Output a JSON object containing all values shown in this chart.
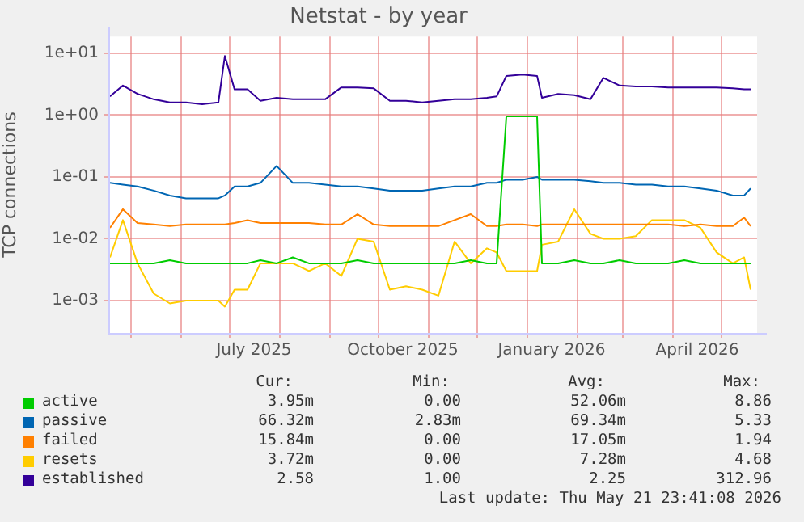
{
  "chart_data": {
    "type": "line",
    "title": "Netstat - by year",
    "ylabel": "TCP connections",
    "x": [
      "2025-04-18",
      "2025-04-26",
      "2025-05-05",
      "2025-05-15",
      "2025-05-25",
      "2025-06-04",
      "2025-06-14",
      "2025-06-24",
      "2025-06-28",
      "2025-07-04",
      "2025-07-12",
      "2025-07-20",
      "2025-07-30",
      "2025-08-09",
      "2025-08-19",
      "2025-08-29",
      "2025-09-08",
      "2025-09-18",
      "2025-09-28",
      "2025-10-08",
      "2025-10-18",
      "2025-10-28",
      "2025-11-07",
      "2025-11-17",
      "2025-11-27",
      "2025-12-07",
      "2025-12-13",
      "2025-12-19",
      "2025-12-29",
      "2026-01-07",
      "2026-01-10",
      "2026-01-20",
      "2026-01-30",
      "2026-02-09",
      "2026-02-17",
      "2026-02-27",
      "2026-03-09",
      "2026-03-19",
      "2026-03-29",
      "2026-04-08",
      "2026-04-18",
      "2026-04-28",
      "2026-05-08",
      "2026-05-15",
      "2026-05-19"
    ],
    "series": [
      {
        "name": "active",
        "color": "#00cc00",
        "values": [
          0.004,
          0.004,
          0.004,
          0.004,
          0.0045,
          0.004,
          0.004,
          0.004,
          0.004,
          0.004,
          0.004,
          0.0045,
          0.004,
          0.005,
          0.004,
          0.004,
          0.004,
          0.0045,
          0.004,
          0.004,
          0.004,
          0.004,
          0.004,
          0.004,
          0.0045,
          0.004,
          0.004,
          0.95,
          0.95,
          0.95,
          0.004,
          0.004,
          0.0045,
          0.004,
          0.004,
          0.0045,
          0.004,
          0.004,
          0.004,
          0.0045,
          0.004,
          0.004,
          0.004,
          0.004,
          0.004
        ]
      },
      {
        "name": "passive",
        "color": "#0066b3",
        "values": [
          0.08,
          0.075,
          0.07,
          0.06,
          0.05,
          0.045,
          0.045,
          0.045,
          0.05,
          0.07,
          0.07,
          0.08,
          0.15,
          0.08,
          0.08,
          0.075,
          0.07,
          0.07,
          0.065,
          0.06,
          0.06,
          0.06,
          0.065,
          0.07,
          0.07,
          0.08,
          0.08,
          0.09,
          0.09,
          0.1,
          0.09,
          0.09,
          0.09,
          0.085,
          0.08,
          0.08,
          0.075,
          0.075,
          0.07,
          0.07,
          0.065,
          0.06,
          0.05,
          0.05,
          0.065
        ]
      },
      {
        "name": "failed",
        "color": "#ff8000",
        "values": [
          0.015,
          0.03,
          0.018,
          0.017,
          0.016,
          0.017,
          0.017,
          0.017,
          0.017,
          0.018,
          0.02,
          0.018,
          0.018,
          0.018,
          0.018,
          0.017,
          0.017,
          0.025,
          0.017,
          0.016,
          0.016,
          0.016,
          0.016,
          0.02,
          0.025,
          0.016,
          0.016,
          0.017,
          0.017,
          0.016,
          0.017,
          0.017,
          0.017,
          0.017,
          0.017,
          0.017,
          0.017,
          0.017,
          0.017,
          0.016,
          0.017,
          0.016,
          0.016,
          0.022,
          0.016
        ]
      },
      {
        "name": "resets",
        "color": "#ffcc00",
        "values": [
          0.005,
          0.02,
          0.004,
          0.0013,
          0.0009,
          0.001,
          0.001,
          0.001,
          0.0008,
          0.0015,
          0.0015,
          0.004,
          0.004,
          0.004,
          0.003,
          0.004,
          0.0025,
          0.01,
          0.009,
          0.0015,
          0.0017,
          0.0015,
          0.0012,
          0.009,
          0.004,
          0.007,
          0.006,
          0.003,
          0.003,
          0.003,
          0.008,
          0.009,
          0.03,
          0.012,
          0.01,
          0.01,
          0.011,
          0.02,
          0.02,
          0.02,
          0.015,
          0.006,
          0.004,
          0.005,
          0.0015
        ]
      },
      {
        "name": "established",
        "color": "#330099",
        "values": [
          2.0,
          3.0,
          2.2,
          1.8,
          1.6,
          1.6,
          1.5,
          1.6,
          9,
          2.6,
          2.6,
          1.7,
          1.9,
          1.8,
          1.8,
          1.8,
          2.8,
          2.8,
          2.7,
          1.7,
          1.7,
          1.6,
          1.7,
          1.8,
          1.8,
          1.9,
          2.0,
          4.3,
          4.5,
          4.3,
          1.9,
          2.2,
          2.1,
          1.8,
          4.0,
          3.0,
          2.9,
          2.9,
          2.8,
          2.8,
          2.8,
          2.8,
          2.7,
          2.6,
          2.6
        ]
      }
    ],
    "log": true,
    "ylim": [
      0.00034,
      18.6
    ],
    "yticks": [
      {
        "value": 0.001,
        "label": "1e-03"
      },
      {
        "value": 0.01,
        "label": "1e-02"
      },
      {
        "value": 0.1,
        "label": "1e-01"
      },
      {
        "value": 1,
        "label": "1e+00"
      },
      {
        "value": 10,
        "label": "1e+01"
      }
    ],
    "xlim": [
      "2025-04-17",
      "2026-05-23"
    ],
    "xticks": [
      {
        "value": "2025-05-01",
        "label": null
      },
      {
        "value": "2025-06-01",
        "label": null
      },
      {
        "value": "2025-07-01",
        "label": null
      },
      {
        "value": "2025-07-16",
        "label": "July 2025"
      },
      {
        "value": "2025-08-01",
        "label": null
      },
      {
        "value": "2025-09-01",
        "label": null
      },
      {
        "value": "2025-10-01",
        "label": null
      },
      {
        "value": "2025-10-16",
        "label": "October 2025"
      },
      {
        "value": "2025-11-01",
        "label": null
      },
      {
        "value": "2025-12-01",
        "label": null
      },
      {
        "value": "2026-01-01",
        "label": null
      },
      {
        "value": "2026-01-16",
        "label": "January 2026"
      },
      {
        "value": "2026-02-01",
        "label": null
      },
      {
        "value": "2026-03-01",
        "label": null
      },
      {
        "value": "2026-04-01",
        "label": null
      },
      {
        "value": "2026-04-16",
        "label": "April 2026"
      },
      {
        "value": "2026-05-01",
        "label": null
      }
    ],
    "grid": true,
    "legend": "bottom",
    "annotations": [
      "Cur:",
      "Min:",
      "Avg:",
      "Max:",
      "3.95m",
      "0.00",
      "52.06m",
      "8.86",
      "66.32m",
      "2.83m",
      "69.34m",
      "5.33",
      "15.84m",
      "0.00",
      "17.05m",
      "1.94",
      "3.72m",
      "0.00",
      "7.28m",
      "4.68",
      "2.58",
      "1.00",
      "2.25",
      "312.96",
      "Last update: Thu May 21 23:41:08 2026"
    ]
  }
}
